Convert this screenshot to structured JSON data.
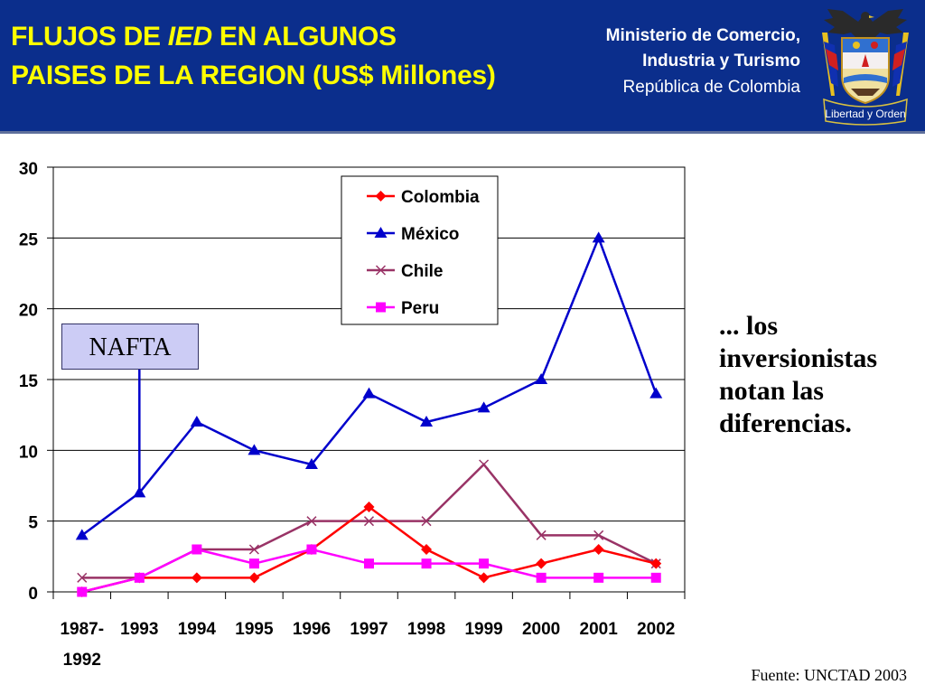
{
  "header": {
    "title_part1": "FLUJOS DE ",
    "title_italic": "IED",
    "title_part2": " EN ALGUNOS",
    "title_line2": "PAISES DE LA REGION (US$ Millones)",
    "ministry_line1": "Ministerio de Comercio,",
    "ministry_line2": "Industria y Turismo",
    "ministry_line3": "República de Colombia",
    "motto": "Libertad y Orden"
  },
  "annotation": "NAFTA",
  "side_text": "... los inversionistas notan las diferencias.",
  "source": "Fuente: UNCTAD 2003",
  "colors": {
    "header_bg": "#0b2e8c",
    "title": "#ffff00",
    "colombia": "#ff0000",
    "mexico": "#0000cc",
    "chile": "#993366",
    "peru": "#ff00ff"
  },
  "chart_data": {
    "type": "line",
    "title": "FLUJOS DE IED EN ALGUNOS PAISES DE LA REGION (US$ Millones)",
    "categories": [
      [
        "1987-",
        "1992"
      ],
      "1993",
      "1994",
      "1995",
      "1996",
      "1997",
      "1998",
      "1999",
      "2000",
      "2001",
      "2002"
    ],
    "ylim": [
      0,
      30
    ],
    "yticks": [
      0,
      5,
      10,
      15,
      20,
      25,
      30
    ],
    "grid": true,
    "legend_position": "top-center",
    "series": [
      {
        "name": "Colombia",
        "marker": "diamond",
        "color": "#ff0000",
        "values": [
          0,
          1,
          1,
          1,
          3,
          6,
          3,
          1,
          2,
          3,
          2
        ]
      },
      {
        "name": "México",
        "marker": "triangle",
        "color": "#0000cc",
        "values": [
          4,
          7,
          12,
          10,
          9,
          14,
          12,
          13,
          15,
          25,
          14
        ]
      },
      {
        "name": "Chile",
        "marker": "x",
        "color": "#993366",
        "values": [
          1,
          1,
          3,
          3,
          5,
          5,
          5,
          9,
          4,
          4,
          2
        ]
      },
      {
        "name": "Peru",
        "marker": "square",
        "color": "#ff00ff",
        "values": [
          0,
          1,
          3,
          2,
          3,
          2,
          2,
          2,
          1,
          1,
          1
        ]
      }
    ]
  }
}
